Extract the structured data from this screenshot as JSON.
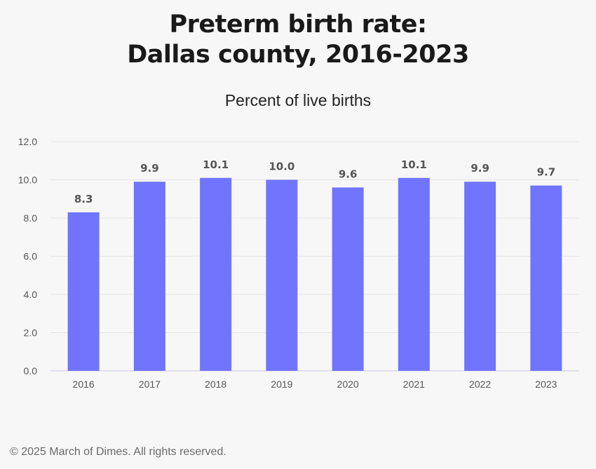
{
  "chart_data": {
    "type": "bar",
    "title_lines": [
      "Preterm birth rate:",
      "Dallas county, 2016-2023"
    ],
    "subtitle": "Percent of live births",
    "categories": [
      "2016",
      "2017",
      "2018",
      "2019",
      "2020",
      "2021",
      "2022",
      "2023"
    ],
    "values": [
      8.3,
      9.9,
      10.1,
      10.0,
      9.6,
      10.1,
      9.9,
      9.7
    ],
    "value_labels": [
      "8.3",
      "9.9",
      "10.1",
      "10.0",
      "9.6",
      "10.1",
      "9.9",
      "9.7"
    ],
    "y_ticks": [
      "0.0",
      "2.0",
      "4.0",
      "6.0",
      "8.0",
      "10.0",
      "12.0"
    ],
    "ylim": [
      0,
      12
    ],
    "grid": true,
    "legend": "none",
    "bar_color": "#7174fc"
  },
  "footer": "© 2025 March of Dimes. All rights reserved."
}
